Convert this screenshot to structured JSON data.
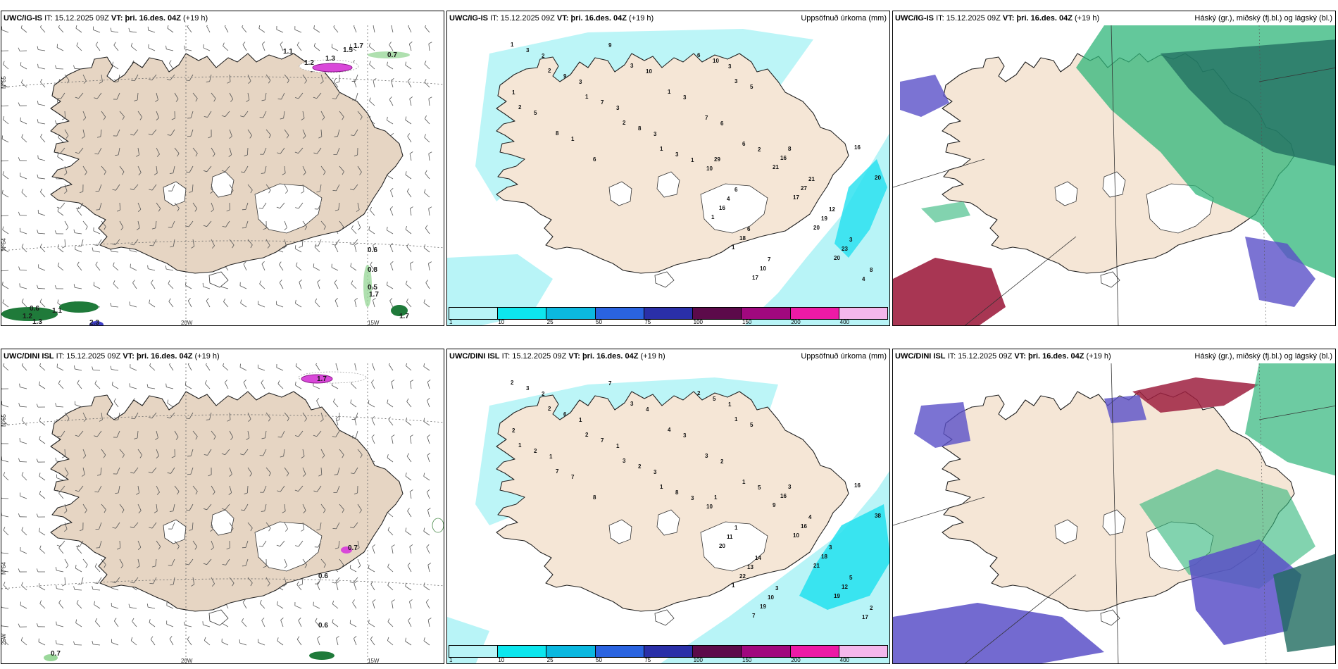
{
  "rows": [
    {
      "model": "UWC/IG-IS",
      "it_label": "IT:",
      "it_value": "15.12.2025 09Z",
      "vt_label": "VT:",
      "vt_value": "þri. 16.des. 04Z",
      "lead": "(+19 h)",
      "panels": [
        {
          "kind": "wind",
          "right_label": "",
          "value_labels": [
            "0.7",
            "0.6",
            "1.1",
            "1.2",
            "1.3",
            "0.6",
            "0.8",
            "0.5",
            "1.7",
            "1.7",
            "2.3",
            "1.5",
            "1.7",
            "1.1",
            "1.2",
            "1.3"
          ],
          "lat_labels": [
            "N°65",
            "N°64"
          ],
          "lon_labels": [
            "20W",
            "15W"
          ]
        },
        {
          "kind": "precip",
          "right_label": "Uppsöfnuð úrkoma (mm)",
          "labels": [
            "1",
            "2",
            "1",
            "2",
            "1",
            "6",
            "3",
            "2",
            "8",
            "6",
            "3",
            "1",
            "7",
            "6",
            "3",
            "9",
            "7",
            "8",
            "3",
            "10",
            "5",
            "5",
            "1",
            "9",
            "10",
            "3",
            "6",
            "2",
            "2",
            "3",
            "3",
            "3",
            "1",
            "3",
            "1",
            "1",
            "1",
            "17",
            "21",
            "17",
            "20",
            "20",
            "16",
            "20",
            "16",
            "18",
            "10",
            "16",
            "27",
            "19",
            "23",
            "4",
            "10",
            "4",
            "6",
            "7",
            "8",
            "21",
            "12",
            "3",
            "8",
            "29",
            "6"
          ],
          "colorbar_ticks": [
            "1",
            "10",
            "25",
            "50",
            "75",
            "100",
            "150",
            "200",
            "400"
          ]
        },
        {
          "kind": "cloud",
          "right_label": "Háský (gr.), miðský (fj.bl.) og lágský (bl.)"
        }
      ]
    },
    {
      "model": "UWC/DINI ISL",
      "it_label": "IT:",
      "it_value": "15.12.2025 09Z",
      "vt_label": "VT:",
      "vt_value": "þri. 16.des. 04Z",
      "lead": "(+19 h)",
      "panels": [
        {
          "kind": "wind",
          "right_label": "",
          "value_labels": [
            "0.6",
            "1.7",
            "0.7",
            "0.6",
            "0.7"
          ],
          "lat_labels": [
            "N°65",
            "N°64",
            "25W"
          ],
          "lon_labels": [
            "20W",
            "15W"
          ]
        },
        {
          "kind": "precip",
          "right_label": "Uppsöfnuð úrkoma (mm)",
          "labels": [
            "2",
            "2",
            "2",
            "3",
            "1",
            "2",
            "1",
            "1",
            "7",
            "8",
            "3",
            "4",
            "3",
            "1",
            "3",
            "6",
            "7",
            "2",
            "8",
            "5",
            "5",
            "2",
            "7",
            "7",
            "4",
            "3",
            "2",
            "5",
            "2",
            "1",
            "1",
            "3",
            "3",
            "1",
            "2",
            "1",
            "1",
            "7",
            "9",
            "10",
            "21",
            "19",
            "16",
            "38",
            "20",
            "22",
            "19",
            "16",
            "16",
            "18",
            "12",
            "17",
            "10",
            "11",
            "13",
            "10",
            "3",
            "4",
            "3",
            "5",
            "2",
            "1",
            "1",
            "14",
            "3"
          ],
          "colorbar_ticks": [
            "1",
            "10",
            "25",
            "50",
            "75",
            "100",
            "150",
            "200",
            "400"
          ]
        },
        {
          "kind": "cloud",
          "right_label": "Háský (gr.), miðský (fj.bl.) og lágský (bl.)"
        }
      ]
    }
  ],
  "colors": {
    "land": "#f5e6d6",
    "land_wind": "#e6d5c3",
    "sea": "#ffffff",
    "precip_light": "#b8f4f7",
    "precip_cyan": "#22e0ef",
    "cloud_high": "#2fb57a",
    "cloud_mid": "#1f6b5f",
    "cloud_low": "#5a50c8",
    "cloud_red": "#9e2040",
    "colorbar": [
      "#b8f4f7",
      "#0de6ee",
      "#0bb8e0",
      "#2a63e0",
      "#2a2fa8",
      "#5c0a4a",
      "#a0087e",
      "#ec1aa6",
      "#f4b7ec"
    ]
  }
}
